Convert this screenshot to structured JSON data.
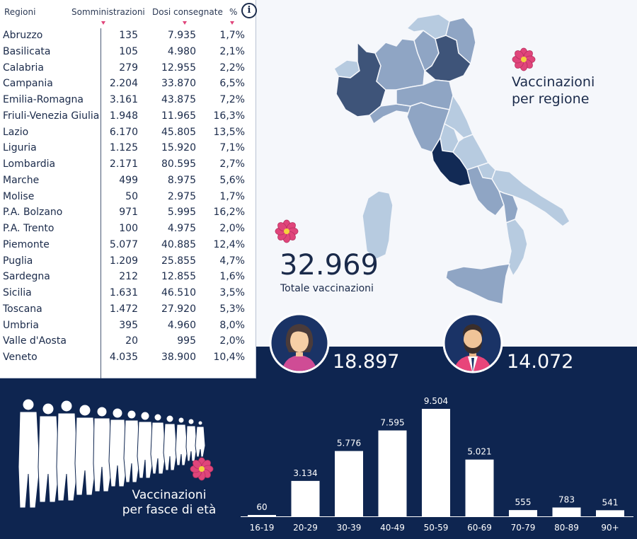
{
  "table": {
    "headers": {
      "region": "Regioni",
      "administrations": "Somministrazioni",
      "doses": "Dosi consegnate",
      "percent": "%"
    },
    "info_icon": "i",
    "rows": [
      {
        "region": "Abruzzo",
        "administrations": "135",
        "doses": "7.935",
        "percent": "1,7%"
      },
      {
        "region": "Basilicata",
        "administrations": "105",
        "doses": "4.980",
        "percent": "2,1%"
      },
      {
        "region": "Calabria",
        "administrations": "279",
        "doses": "12.955",
        "percent": "2,2%"
      },
      {
        "region": "Campania",
        "administrations": "2.204",
        "doses": "33.870",
        "percent": "6,5%"
      },
      {
        "region": "Emilia-Romagna",
        "administrations": "3.161",
        "doses": "43.875",
        "percent": "7,2%"
      },
      {
        "region": "Friuli-Venezia Giulia",
        "administrations": "1.948",
        "doses": "11.965",
        "percent": "16,3%"
      },
      {
        "region": "Lazio",
        "administrations": "6.170",
        "doses": "45.805",
        "percent": "13,5%"
      },
      {
        "region": "Liguria",
        "administrations": "1.125",
        "doses": "15.920",
        "percent": "7,1%"
      },
      {
        "region": "Lombardia",
        "administrations": "2.171",
        "doses": "80.595",
        "percent": "2,7%"
      },
      {
        "region": "Marche",
        "administrations": "499",
        "doses": "8.975",
        "percent": "5,6%"
      },
      {
        "region": "Molise",
        "administrations": "50",
        "doses": "2.975",
        "percent": "1,7%"
      },
      {
        "region": "P.A. Bolzano",
        "administrations": "971",
        "doses": "5.995",
        "percent": "16,2%"
      },
      {
        "region": "P.A. Trento",
        "administrations": "100",
        "doses": "4.975",
        "percent": "2,0%"
      },
      {
        "region": "Piemonte",
        "administrations": "5.077",
        "doses": "40.885",
        "percent": "12,4%"
      },
      {
        "region": "Puglia",
        "administrations": "1.209",
        "doses": "25.855",
        "percent": "4,7%"
      },
      {
        "region": "Sardegna",
        "administrations": "212",
        "doses": "12.855",
        "percent": "1,6%"
      },
      {
        "region": "Sicilia",
        "administrations": "1.631",
        "doses": "46.510",
        "percent": "3,5%"
      },
      {
        "region": "Toscana",
        "administrations": "1.472",
        "doses": "27.920",
        "percent": "5,3%"
      },
      {
        "region": "Umbria",
        "administrations": "395",
        "doses": "4.960",
        "percent": "8,0%"
      },
      {
        "region": "Valle d'Aosta",
        "administrations": "20",
        "doses": "995",
        "percent": "2,0%"
      },
      {
        "region": "Veneto",
        "administrations": "4.035",
        "doses": "38.900",
        "percent": "10,4%"
      }
    ]
  },
  "map": {
    "title_line1": "Vaccinazioni",
    "title_line2": "per regione"
  },
  "total": {
    "value": "32.969",
    "label": "Totale vaccinazioni"
  },
  "gender": {
    "women": "18.897",
    "men": "14.072"
  },
  "age_section": {
    "title_line1": "Vaccinazioni",
    "title_line2": "per fasce di età"
  },
  "colors": {
    "dark_navy": "#0e2550",
    "accent_pink": "#e0457b",
    "map_light": "#b7cbe0",
    "map_mid": "#8fa5c4",
    "map_dark": "#3e5479",
    "map_darkest": "#122a55"
  },
  "chart_data": {
    "type": "bar",
    "categories": [
      "16-19",
      "20-29",
      "30-39",
      "40-49",
      "50-59",
      "60-69",
      "70-79",
      "80-89",
      "90+"
    ],
    "values": [
      60,
      3134,
      5776,
      7595,
      9504,
      5021,
      555,
      783,
      541
    ],
    "value_labels": [
      "60",
      "3.134",
      "5.776",
      "7.595",
      "9.504",
      "5.021",
      "555",
      "783",
      "541"
    ],
    "title": "",
    "xlabel": "",
    "ylabel": "",
    "ylim": [
      0,
      9504
    ]
  }
}
